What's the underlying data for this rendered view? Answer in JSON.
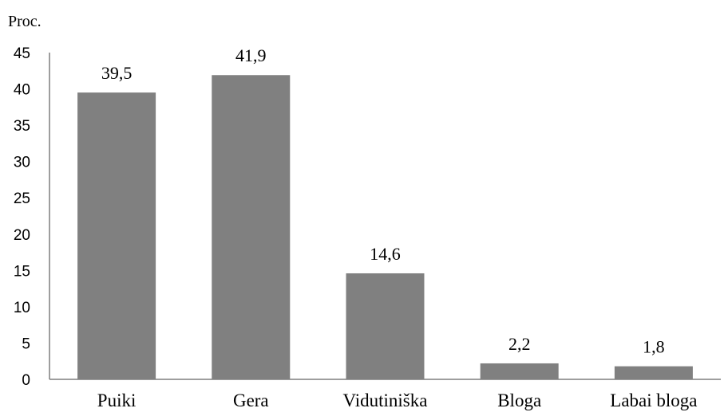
{
  "chart_data": {
    "type": "bar",
    "title": "",
    "xlabel": "",
    "ylabel": "Proc.",
    "ylim": [
      0,
      45
    ],
    "yticks": [
      0,
      5,
      10,
      15,
      20,
      25,
      30,
      35,
      40,
      45
    ],
    "ytick_labels": [
      "0",
      "5",
      "10",
      "15",
      "20",
      "25",
      "30",
      "35",
      "40",
      "45"
    ],
    "grid": false,
    "legend": "none",
    "categories": [
      "Puiki",
      "Gera",
      "Vidutiniška",
      "Bloga",
      "Labai bloga"
    ],
    "values": [
      39.5,
      41.9,
      14.6,
      2.2,
      1.8
    ],
    "value_labels": [
      "39,5",
      "41,9",
      "14,6",
      "2,2",
      "1,8"
    ],
    "bar_color": "#808080",
    "axis_color": "#7f7f7f"
  }
}
